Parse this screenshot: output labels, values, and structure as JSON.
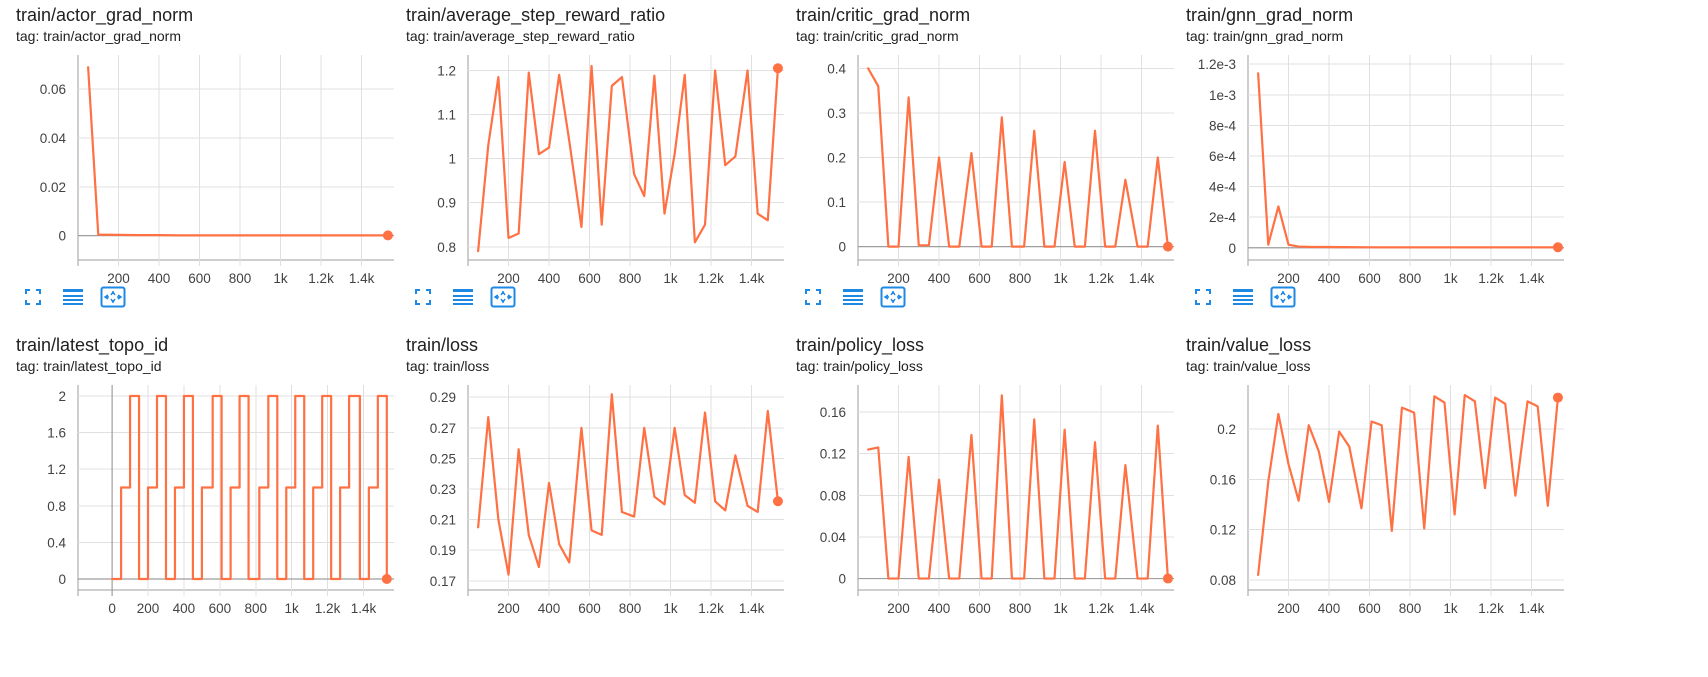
{
  "colors": {
    "series": "#ff7043",
    "grid": "#e0e0e0",
    "axis": "#9e9e9e",
    "toolbar_icon": "#1e88e5"
  },
  "toolbar_icons": [
    "fullscreen-icon",
    "data-table-icon",
    "fit-domain-icon"
  ],
  "charts": [
    {
      "title": "train/actor_grad_norm",
      "tag": "tag: train/actor_grad_norm",
      "chart_data": {
        "type": "line",
        "xlim": [
          0,
          1560
        ],
        "ylim": [
          -0.01,
          0.074
        ],
        "xticks": [
          200,
          400,
          600,
          800,
          1000,
          1200,
          1400
        ],
        "xtick_labels": [
          "200",
          "400",
          "600",
          "800",
          "1k",
          "1.2k",
          "1.4k"
        ],
        "yticks": [
          0,
          0.02,
          0.04,
          0.06
        ],
        "ytick_labels": [
          "0",
          "0.02",
          "0.04",
          "0.06"
        ],
        "grid": true,
        "x": [
          50,
          100,
          200,
          300,
          400,
          500,
          600,
          800,
          1000,
          1200,
          1400,
          1530
        ],
        "y": [
          0.069,
          0.0004,
          0.0003,
          0.0002,
          0.0002,
          0.0001,
          0.0001,
          0.0001,
          0.0001,
          0.0001,
          0.0001,
          0.0001
        ],
        "last_point_marker": true
      }
    },
    {
      "title": "train/average_step_reward_ratio",
      "tag": "tag: train/average_step_reward_ratio",
      "chart_data": {
        "type": "line",
        "xlim": [
          0,
          1560
        ],
        "ylim": [
          0.77,
          1.235
        ],
        "xticks": [
          200,
          400,
          600,
          800,
          1000,
          1200,
          1400
        ],
        "xtick_labels": [
          "200",
          "400",
          "600",
          "800",
          "1k",
          "1.2k",
          "1.4k"
        ],
        "yticks": [
          0.8,
          0.9,
          1,
          1.1,
          1.2
        ],
        "ytick_labels": [
          "0.8",
          "0.9",
          "1",
          "1.1",
          "1.2"
        ],
        "grid": true,
        "x": [
          50,
          100,
          150,
          200,
          250,
          300,
          350,
          400,
          450,
          500,
          560,
          610,
          660,
          710,
          760,
          820,
          870,
          920,
          970,
          1020,
          1070,
          1120,
          1170,
          1220,
          1270,
          1320,
          1380,
          1430,
          1480,
          1530
        ],
        "y": [
          0.79,
          1.03,
          1.185,
          0.82,
          0.83,
          1.195,
          1.01,
          1.025,
          1.19,
          1.04,
          0.845,
          1.21,
          0.85,
          1.165,
          1.185,
          0.965,
          0.915,
          1.188,
          0.875,
          1.01,
          1.19,
          0.81,
          0.85,
          1.2,
          0.985,
          1.005,
          1.2,
          0.875,
          0.86,
          1.205
        ],
        "last_point_marker": true
      }
    },
    {
      "title": "train/critic_grad_norm",
      "tag": "tag: train/critic_grad_norm",
      "chart_data": {
        "type": "line",
        "xlim": [
          0,
          1560
        ],
        "ylim": [
          -0.03,
          0.43
        ],
        "xticks": [
          200,
          400,
          600,
          800,
          1000,
          1200,
          1400
        ],
        "xtick_labels": [
          "200",
          "400",
          "600",
          "800",
          "1k",
          "1.2k",
          "1.4k"
        ],
        "yticks": [
          0,
          0.1,
          0.2,
          0.3,
          0.4
        ],
        "ytick_labels": [
          "0",
          "0.1",
          "0.2",
          "0.3",
          "0.4"
        ],
        "grid": true,
        "x": [
          50,
          100,
          150,
          200,
          250,
          300,
          350,
          400,
          450,
          500,
          560,
          610,
          660,
          710,
          760,
          820,
          870,
          920,
          970,
          1020,
          1070,
          1120,
          1170,
          1220,
          1270,
          1320,
          1380,
          1430,
          1480,
          1530
        ],
        "y": [
          0.4,
          0.36,
          0.0,
          0.0,
          0.335,
          0.003,
          0.003,
          0.2,
          0.0,
          0.0,
          0.21,
          0.0,
          0.0,
          0.29,
          0.0,
          0.0,
          0.26,
          0.0,
          0.0,
          0.19,
          0.0,
          0.0,
          0.26,
          0.0,
          0.0,
          0.15,
          0.0,
          0.0,
          0.2,
          0.0
        ],
        "last_point_marker": true
      }
    },
    {
      "title": "train/gnn_grad_norm",
      "tag": "tag: train/gnn_grad_norm",
      "chart_data": {
        "type": "line",
        "xlim": [
          0,
          1560
        ],
        "ylim": [
          -8e-05,
          0.00126
        ],
        "xticks": [
          200,
          400,
          600,
          800,
          1000,
          1200,
          1400
        ],
        "xtick_labels": [
          "200",
          "400",
          "600",
          "800",
          "1k",
          "1.2k",
          "1.4k"
        ],
        "yticks": [
          0,
          0.0002,
          0.0004,
          0.0006,
          0.0008,
          0.001,
          0.0012
        ],
        "ytick_labels": [
          "0",
          "2e-4",
          "4e-4",
          "6e-4",
          "8e-4",
          "1e-3",
          "1.2e-3"
        ],
        "grid": true,
        "x": [
          50,
          100,
          150,
          200,
          250,
          300,
          400,
          600,
          800,
          1000,
          1200,
          1400,
          1530
        ],
        "y": [
          0.00114,
          2e-05,
          0.00027,
          2e-05,
          8e-06,
          6e-06,
          5e-06,
          3e-06,
          3e-06,
          3e-06,
          3e-06,
          3e-06,
          3e-06
        ],
        "last_point_marker": true
      }
    },
    {
      "title": "train/latest_topo_id",
      "tag": "tag: train/latest_topo_id",
      "chart_data": {
        "type": "line",
        "step": true,
        "xlim": [
          -190,
          1570
        ],
        "ylim": [
          -0.12,
          2.12
        ],
        "xticks": [
          0,
          200,
          400,
          600,
          800,
          1000,
          1200,
          1400
        ],
        "xtick_labels": [
          "0",
          "200",
          "400",
          "600",
          "800",
          "1k",
          "1.2k",
          "1.4k"
        ],
        "yticks": [
          0,
          0.4,
          0.8,
          1.2,
          1.6,
          2
        ],
        "ytick_labels": [
          "0",
          "0.4",
          "0.8",
          "1.2",
          "1.6",
          "2"
        ],
        "grid": true,
        "zero_axes": true,
        "x": [
          0,
          50,
          100,
          150,
          200,
          250,
          300,
          350,
          400,
          450,
          500,
          560,
          610,
          660,
          710,
          760,
          820,
          870,
          920,
          970,
          1020,
          1070,
          1120,
          1170,
          1220,
          1270,
          1320,
          1380,
          1430,
          1480,
          1530
        ],
        "y": [
          0,
          1,
          2,
          0,
          1,
          2,
          0,
          1,
          2,
          0,
          1,
          2,
          0,
          1,
          2,
          0,
          1,
          2,
          0,
          1,
          2,
          0,
          1,
          2,
          0,
          1,
          2,
          0,
          1,
          2,
          0
        ],
        "last_point_marker": true
      }
    },
    {
      "title": "train/loss",
      "tag": "tag: train/loss",
      "chart_data": {
        "type": "line",
        "xlim": [
          0,
          1560
        ],
        "ylim": [
          0.164,
          0.298
        ],
        "xticks": [
          200,
          400,
          600,
          800,
          1000,
          1200,
          1400
        ],
        "xtick_labels": [
          "200",
          "400",
          "600",
          "800",
          "1k",
          "1.2k",
          "1.4k"
        ],
        "yticks": [
          0.17,
          0.19,
          0.21,
          0.23,
          0.25,
          0.27,
          0.29
        ],
        "ytick_labels": [
          "0.17",
          "0.19",
          "0.21",
          "0.23",
          "0.25",
          "0.27",
          "0.29"
        ],
        "grid": true,
        "x": [
          50,
          100,
          150,
          200,
          250,
          300,
          350,
          400,
          450,
          500,
          560,
          610,
          660,
          710,
          760,
          820,
          870,
          920,
          970,
          1020,
          1070,
          1120,
          1170,
          1220,
          1270,
          1320,
          1380,
          1430,
          1480,
          1530
        ],
        "y": [
          0.205,
          0.277,
          0.21,
          0.174,
          0.256,
          0.2,
          0.179,
          0.234,
          0.194,
          0.182,
          0.27,
          0.203,
          0.2,
          0.292,
          0.215,
          0.212,
          0.27,
          0.225,
          0.22,
          0.27,
          0.226,
          0.221,
          0.28,
          0.222,
          0.216,
          0.252,
          0.219,
          0.215,
          0.281,
          0.222
        ],
        "last_point_marker": true
      }
    },
    {
      "title": "train/policy_loss",
      "tag": "tag: train/policy_loss",
      "chart_data": {
        "type": "line",
        "xlim": [
          0,
          1560
        ],
        "ylim": [
          -0.011,
          0.186
        ],
        "xticks": [
          200,
          400,
          600,
          800,
          1000,
          1200,
          1400
        ],
        "xtick_labels": [
          "200",
          "400",
          "600",
          "800",
          "1k",
          "1.2k",
          "1.4k"
        ],
        "yticks": [
          0,
          0.04,
          0.08,
          0.12,
          0.16
        ],
        "ytick_labels": [
          "0",
          "0.04",
          "0.08",
          "0.12",
          "0.16"
        ],
        "grid": true,
        "x": [
          50,
          100,
          150,
          200,
          250,
          300,
          350,
          400,
          450,
          500,
          560,
          610,
          660,
          710,
          760,
          820,
          870,
          920,
          970,
          1020,
          1070,
          1120,
          1170,
          1220,
          1270,
          1320,
          1380,
          1430,
          1480,
          1530
        ],
        "y": [
          0.124,
          0.126,
          0.0,
          0.0,
          0.117,
          0.0,
          0.0,
          0.095,
          0.0,
          0.0,
          0.138,
          0.0,
          0.0,
          0.176,
          0.0,
          0.0,
          0.153,
          0.0,
          0.0,
          0.143,
          0.0,
          0.0,
          0.131,
          0.0,
          0.0,
          0.109,
          0.0,
          0.0,
          0.147,
          0.0
        ],
        "last_point_marker": true
      }
    },
    {
      "title": "train/value_loss",
      "tag": "tag: train/value_loss",
      "chart_data": {
        "type": "line",
        "xlim": [
          0,
          1560
        ],
        "ylim": [
          0.072,
          0.235
        ],
        "xticks": [
          200,
          400,
          600,
          800,
          1000,
          1200,
          1400
        ],
        "xtick_labels": [
          "200",
          "400",
          "600",
          "800",
          "1k",
          "1.2k",
          "1.4k"
        ],
        "yticks": [
          0.08,
          0.12,
          0.16,
          0.2
        ],
        "ytick_labels": [
          "0.08",
          "0.12",
          "0.16",
          "0.2"
        ],
        "grid": true,
        "x": [
          50,
          100,
          150,
          200,
          250,
          300,
          350,
          400,
          450,
          500,
          560,
          610,
          660,
          710,
          760,
          820,
          870,
          920,
          970,
          1020,
          1070,
          1120,
          1170,
          1220,
          1270,
          1320,
          1380,
          1430,
          1480,
          1530
        ],
        "y": [
          0.084,
          0.158,
          0.212,
          0.172,
          0.143,
          0.203,
          0.182,
          0.142,
          0.198,
          0.186,
          0.137,
          0.206,
          0.203,
          0.119,
          0.217,
          0.213,
          0.121,
          0.226,
          0.221,
          0.132,
          0.227,
          0.222,
          0.153,
          0.225,
          0.22,
          0.147,
          0.222,
          0.218,
          0.139,
          0.225
        ],
        "last_point_marker": true
      }
    }
  ]
}
